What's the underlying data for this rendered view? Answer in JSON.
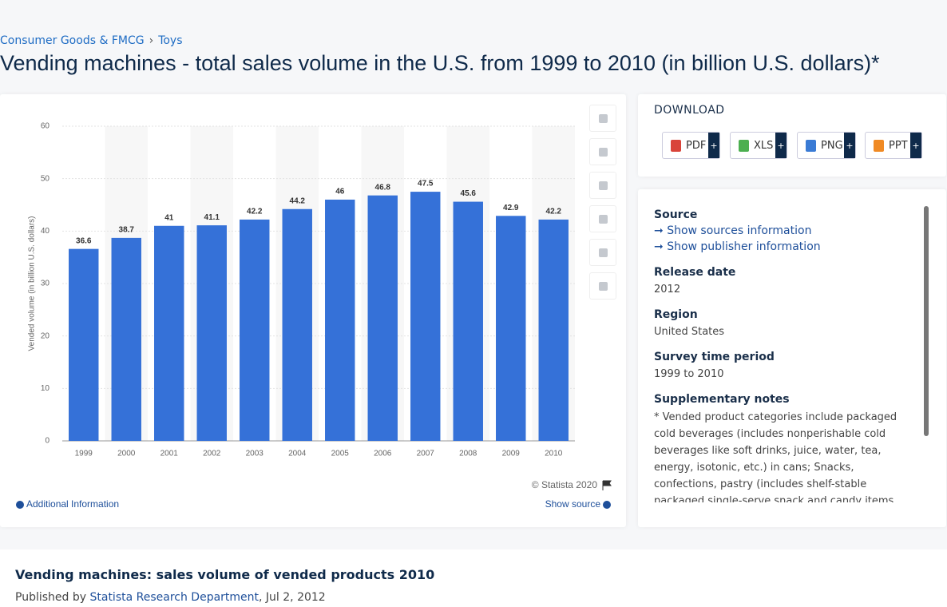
{
  "breadcrumb": [
    "Consumer Goods & FMCG",
    "Toys"
  ],
  "title": "Vending machines - total sales volume in the U.S. from 1999 to 2010 (in billion U.S. dollars)*",
  "chart_data": {
    "type": "bar",
    "y_label": "Vended volume (in billion U.S. dollars)",
    "categories": [
      "1999",
      "2000",
      "2001",
      "2002",
      "2003",
      "2004",
      "2005",
      "2006",
      "2007",
      "2008",
      "2009",
      "2010"
    ],
    "values": [
      36.6,
      38.7,
      41,
      41.1,
      42.2,
      44.2,
      46,
      46.8,
      47.5,
      45.6,
      42.9,
      42.2
    ],
    "color": "#3571d8",
    "ylim": [
      0,
      60
    ],
    "yticks": [
      0,
      10,
      20,
      30,
      40,
      50,
      60
    ],
    "grid": true
  },
  "chart_footer": {
    "credit": "© Statista 2020",
    "additional_info": "Additional Information",
    "show_source": "Show source"
  },
  "download": {
    "heading": "DOWNLOAD",
    "formats": [
      "PDF",
      "XLS",
      "PNG",
      "PPT"
    ],
    "plus": "+"
  },
  "details": {
    "source_heading": "Source",
    "links": [
      "Show sources information",
      "Show publisher information"
    ],
    "items": [
      {
        "label": "Release date",
        "value": "2012"
      },
      {
        "label": "Region",
        "value": "United States"
      },
      {
        "label": "Survey time period",
        "value": "1999 to 2010"
      }
    ],
    "notes_heading": "Supplementary notes",
    "notes": "* Vended product categories include packaged cold beverages (includes nonperishable cold beverages like soft drinks, juice, water, tea, energy, isotonic, etc.) in cans; Snacks, confections, pastry (includes shelf-stable packaged single-serve snack and candy items, both “wide” and “narrow” product assortment"
  },
  "footer": {
    "heading": "Vending machines: sales volume of vended products 2010",
    "published_by": "Published by",
    "publisher": "Statista Research Department",
    "date": ", Jul 2, 2012"
  }
}
